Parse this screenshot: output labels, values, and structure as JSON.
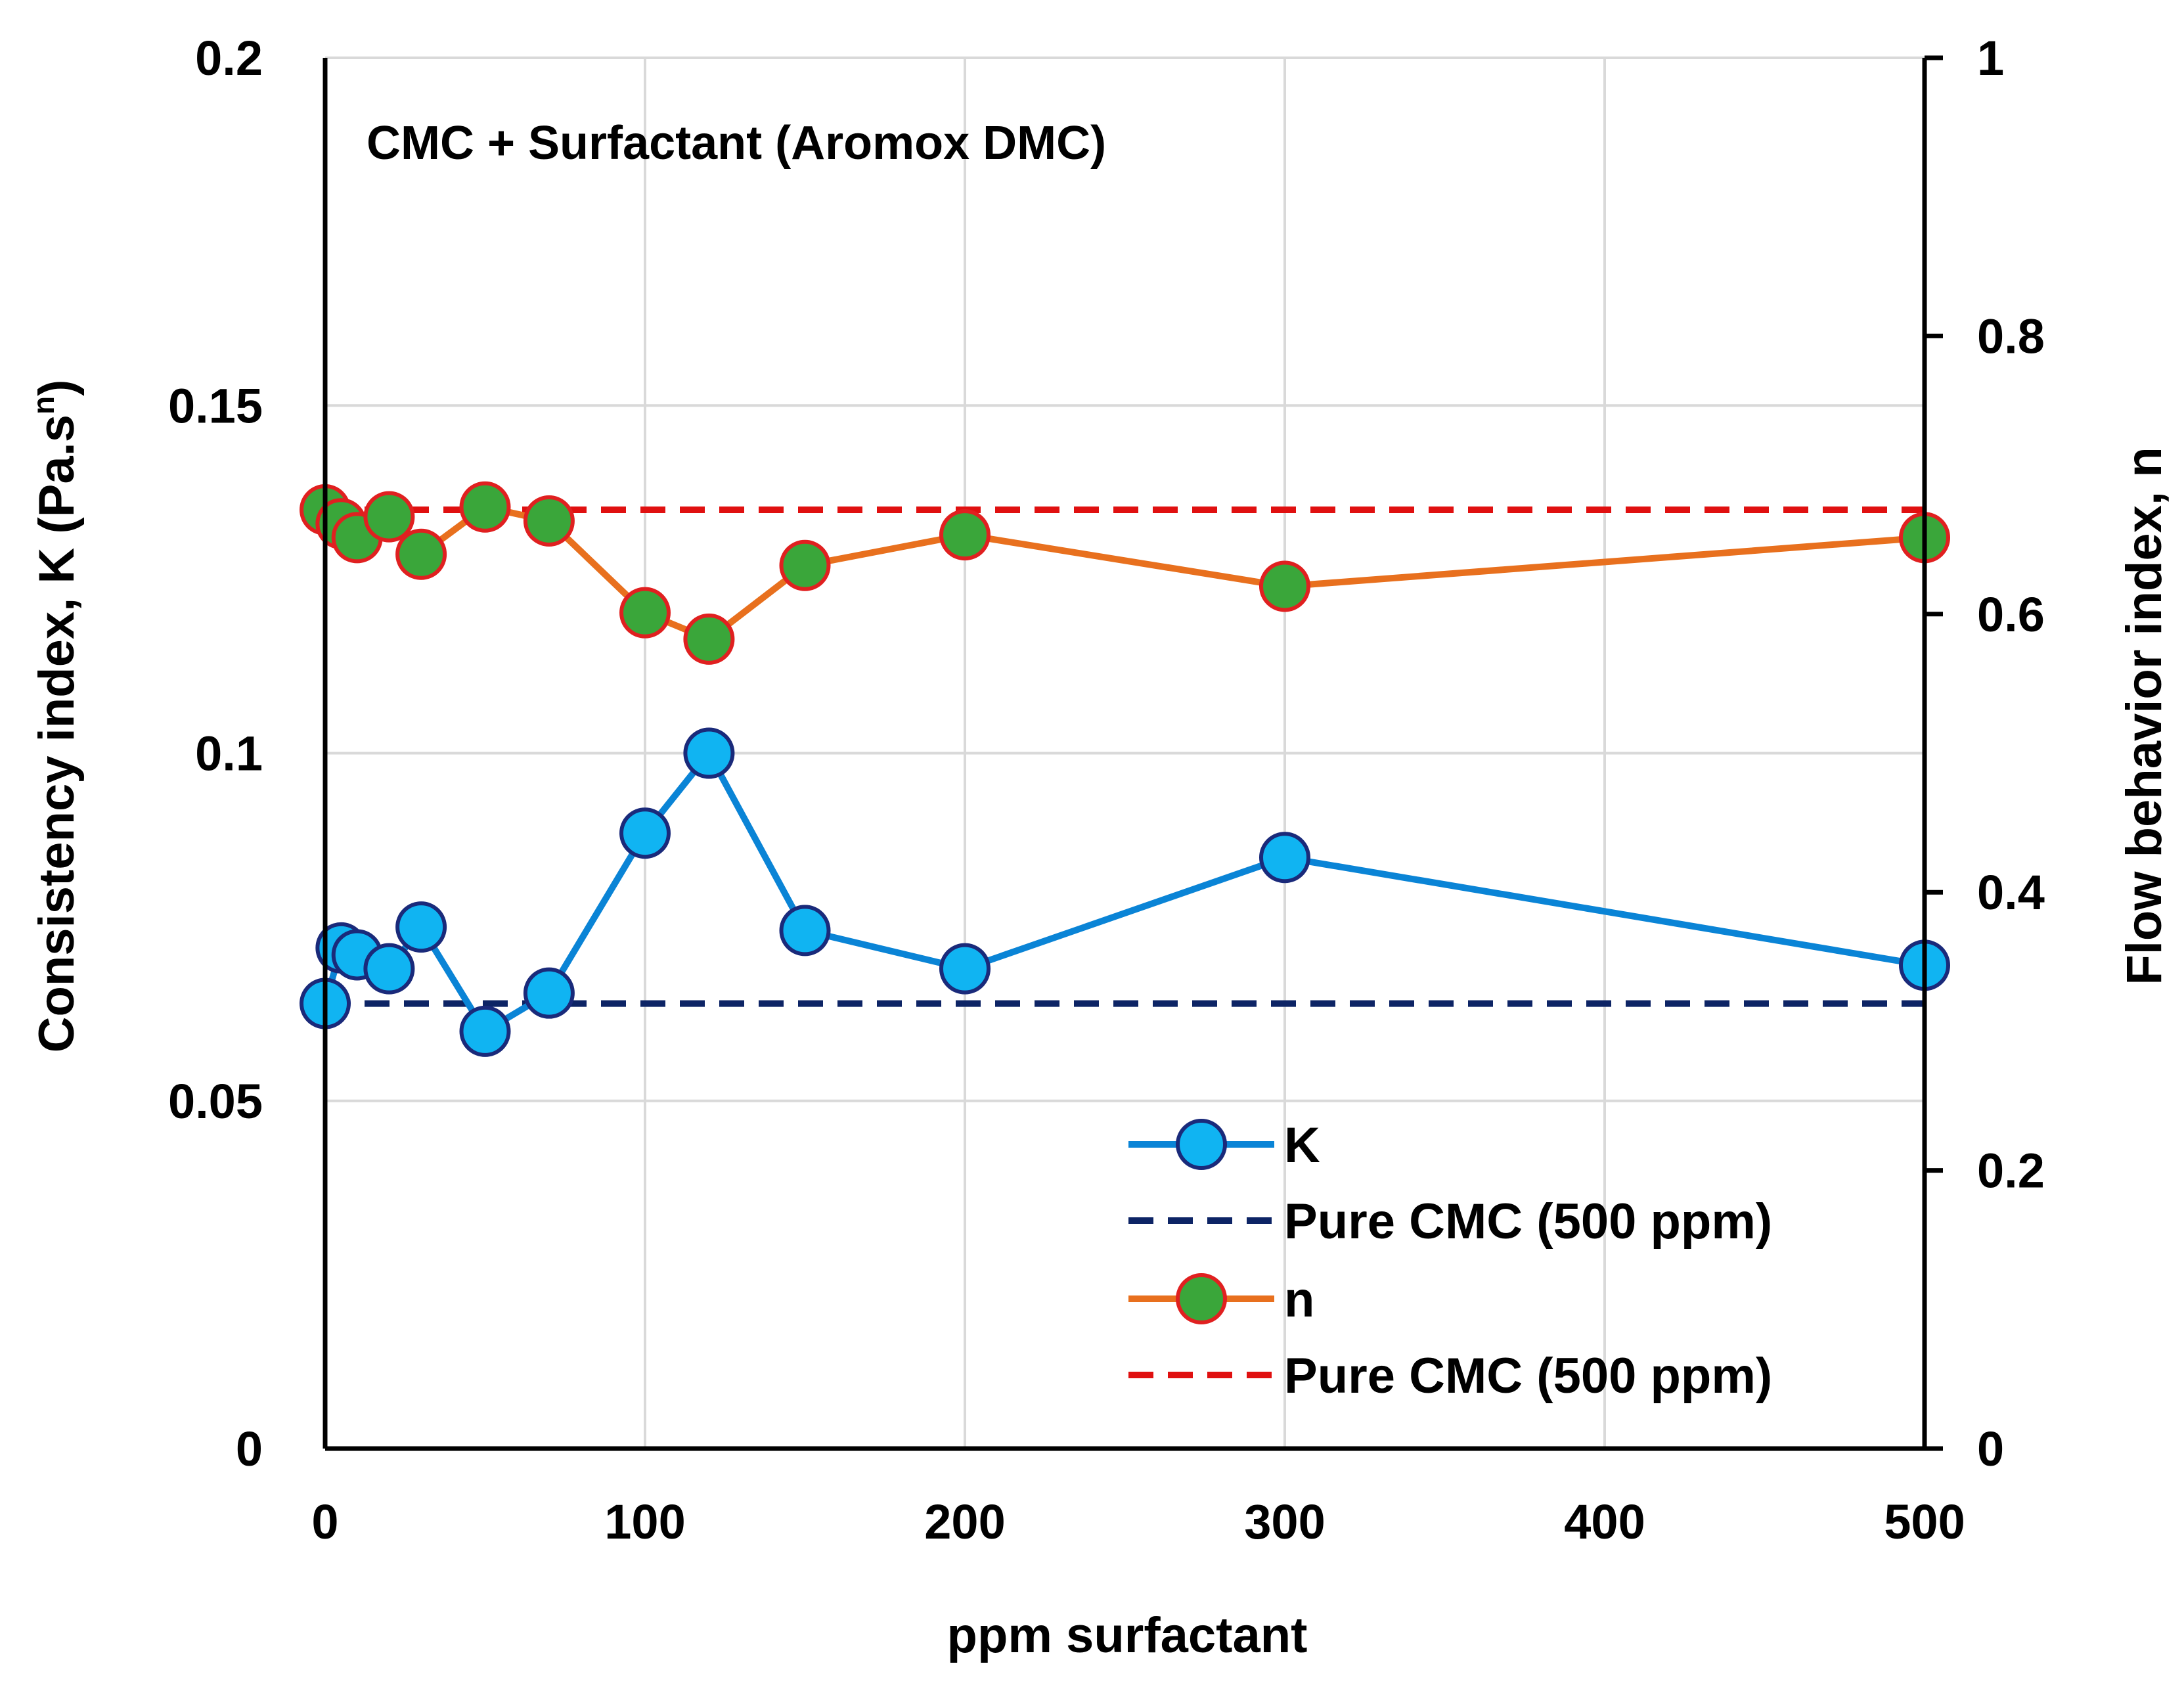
{
  "chart_data": {
    "type": "line",
    "title": "CMC + Surfactant (Aromox DMC)",
    "xlabel": "ppm surfactant",
    "ylabel": "Consistency index, K (Pa.s",
    "ylabel_superscript": "n",
    "ylabel_close": ")",
    "y2label": "Flow behavior index, n",
    "xlim": [
      0,
      500
    ],
    "ylim": [
      0,
      0.2
    ],
    "y2lim": [
      0,
      1
    ],
    "x_ticks": [
      0,
      100,
      200,
      300,
      400,
      500
    ],
    "x_tick_labels": [
      "0",
      "100",
      "200",
      "300",
      "400",
      "500"
    ],
    "y_ticks": [
      0,
      0.05,
      0.1,
      0.15,
      0.2
    ],
    "y_tick_labels": [
      "0",
      "0.05",
      "0.1",
      "0.15",
      "0.2"
    ],
    "y2_ticks": [
      0,
      0.2,
      0.4,
      0.6,
      0.8,
      1
    ],
    "y2_tick_labels": [
      "0",
      "0.2",
      "0.4",
      "0.6",
      "0.8",
      "1"
    ],
    "grid": true,
    "legend_position": "lower-right",
    "series": [
      {
        "name": "K",
        "axis": "left",
        "style": "line-marker",
        "color": "#0a84d6",
        "marker_fill": "#10b4f2",
        "marker_edge": "#1a2a7a",
        "x": [
          0,
          5,
          10,
          20,
          30,
          50,
          70,
          100,
          120,
          150,
          200,
          300,
          500
        ],
        "values": [
          0.064,
          0.072,
          0.071,
          0.069,
          0.075,
          0.06,
          0.0655,
          0.0885,
          0.1,
          0.0745,
          0.069,
          0.085,
          0.0695
        ]
      },
      {
        "name": "Pure CMC (500 ppm)",
        "axis": "left",
        "style": "dashed",
        "color": "#0d2465",
        "x": [
          0,
          500
        ],
        "values": [
          0.064,
          0.064
        ]
      },
      {
        "name": "n",
        "axis": "right",
        "style": "line-marker",
        "color": "#e8701e",
        "marker_fill": "#3aa63a",
        "marker_edge": "#e02020",
        "x": [
          0,
          5,
          10,
          20,
          30,
          50,
          70,
          100,
          120,
          150,
          200,
          300,
          500
        ],
        "values": [
          0.675,
          0.665,
          0.655,
          0.67,
          0.643,
          0.677,
          0.667,
          0.601,
          0.582,
          0.635,
          0.657,
          0.62,
          0.655
        ]
      },
      {
        "name": "Pure CMC (500 ppm)",
        "axis": "right",
        "style": "dashed",
        "color": "#e01010",
        "x": [
          0,
          500
        ],
        "values": [
          0.675,
          0.675
        ]
      }
    ]
  }
}
